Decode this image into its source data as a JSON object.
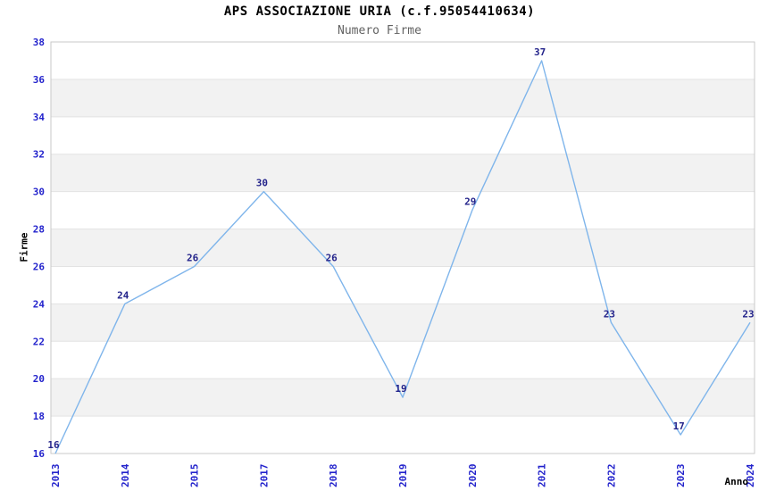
{
  "header": {
    "title": "APS ASSOCIAZIONE URIA (c.f.95054410634)",
    "subtitle": "Numero Firme"
  },
  "chart_data": {
    "type": "line",
    "title": "APS ASSOCIAZIONE URIA (c.f.95054410634)",
    "subtitle": "Numero Firme",
    "xlabel": "Anno",
    "ylabel": "Firme",
    "categories": [
      "2013",
      "2014",
      "2015",
      "2017",
      "2018",
      "2019",
      "2020",
      "2021",
      "2022",
      "2023",
      "2024"
    ],
    "values": [
      16,
      24,
      26,
      30,
      26,
      19,
      29,
      37,
      23,
      17,
      23
    ],
    "ylim": [
      16,
      38
    ],
    "ytick_step": 2,
    "yticks": [
      16,
      18,
      20,
      22,
      24,
      26,
      28,
      30,
      32,
      34,
      36,
      38
    ],
    "grid": "horizontal-bands",
    "legend": "none",
    "show_value_labels": true,
    "colors": {
      "line": "#7FB5EB",
      "tick_label": "#2323CC",
      "value_label": "#24248B",
      "band": "#F2F2F2",
      "gridline": "#E3E3E3",
      "plot_border": "#C9C9C9",
      "title": "#000000",
      "subtitle": "#626262",
      "axis_title": "#000000"
    }
  }
}
